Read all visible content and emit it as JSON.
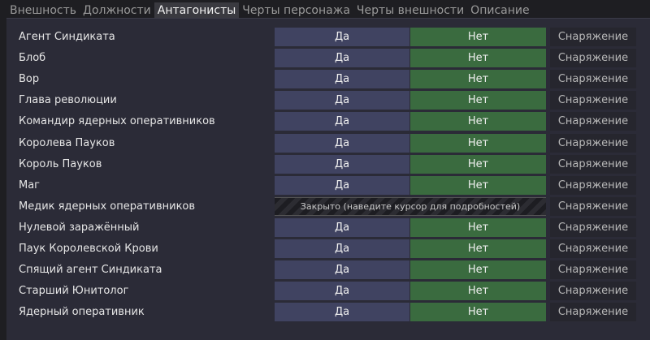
{
  "tabs": [
    {
      "label": "Внешность",
      "active": false
    },
    {
      "label": "Должности",
      "active": false
    },
    {
      "label": "Антагонисты",
      "active": true
    },
    {
      "label": "Черты персонажа",
      "active": false
    },
    {
      "label": "Черты внешности",
      "active": false
    },
    {
      "label": "Описание",
      "active": false
    }
  ],
  "labels": {
    "yes": "Да",
    "no": "Нет",
    "equipment": "Снаряжение",
    "locked": "Закрыто (наведите курсор для подробностей)"
  },
  "colors": {
    "yes": "#404361",
    "no": "#3a6b3f"
  },
  "roles": [
    {
      "name": "Агент Синдиката",
      "locked": false
    },
    {
      "name": "Блоб",
      "locked": false
    },
    {
      "name": "Вор",
      "locked": false
    },
    {
      "name": "Глава революции",
      "locked": false
    },
    {
      "name": "Командир ядерных оперативников",
      "locked": false
    },
    {
      "name": "Королева Пауков",
      "locked": false
    },
    {
      "name": "Король Пауков",
      "locked": false
    },
    {
      "name": "Маг",
      "locked": false
    },
    {
      "name": "Медик ядерных оперативников",
      "locked": true
    },
    {
      "name": "Нулевой заражённый",
      "locked": false
    },
    {
      "name": "Паук Королевской Крови",
      "locked": false
    },
    {
      "name": "Спящий агент Синдиката",
      "locked": false
    },
    {
      "name": "Старший Юнитолог",
      "locked": false
    },
    {
      "name": "Ядерный оперативник",
      "locked": false
    }
  ]
}
